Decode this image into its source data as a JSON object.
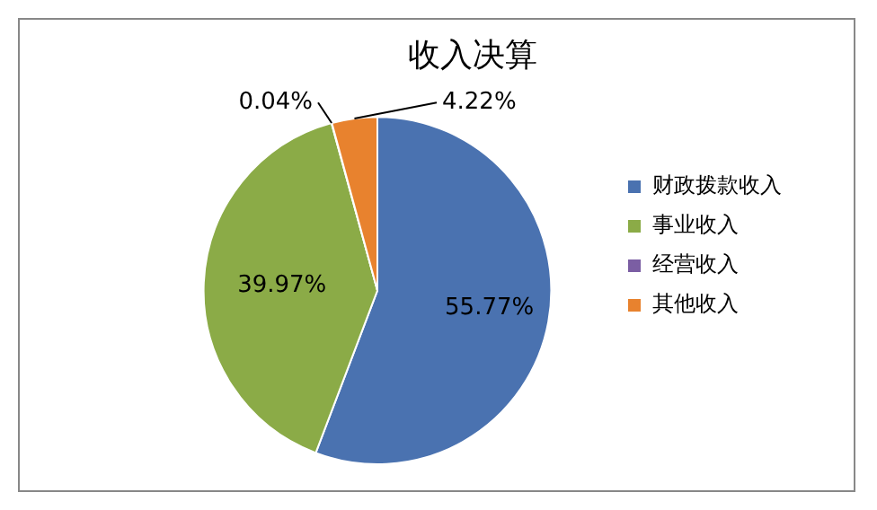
{
  "chart_data": {
    "type": "pie",
    "title": "收入决算",
    "categories": [
      "财政拨款收入",
      "事业收入",
      "经营收入",
      "其他收入"
    ],
    "values": [
      55.77,
      39.97,
      0.04,
      4.22
    ],
    "value_labels": [
      "55.77%",
      "39.97%",
      "0.04%",
      "4.22%"
    ],
    "colors": [
      "#4a72b0",
      "#8bab47",
      "#7b5ea3",
      "#e8822e"
    ],
    "legend": "right"
  }
}
